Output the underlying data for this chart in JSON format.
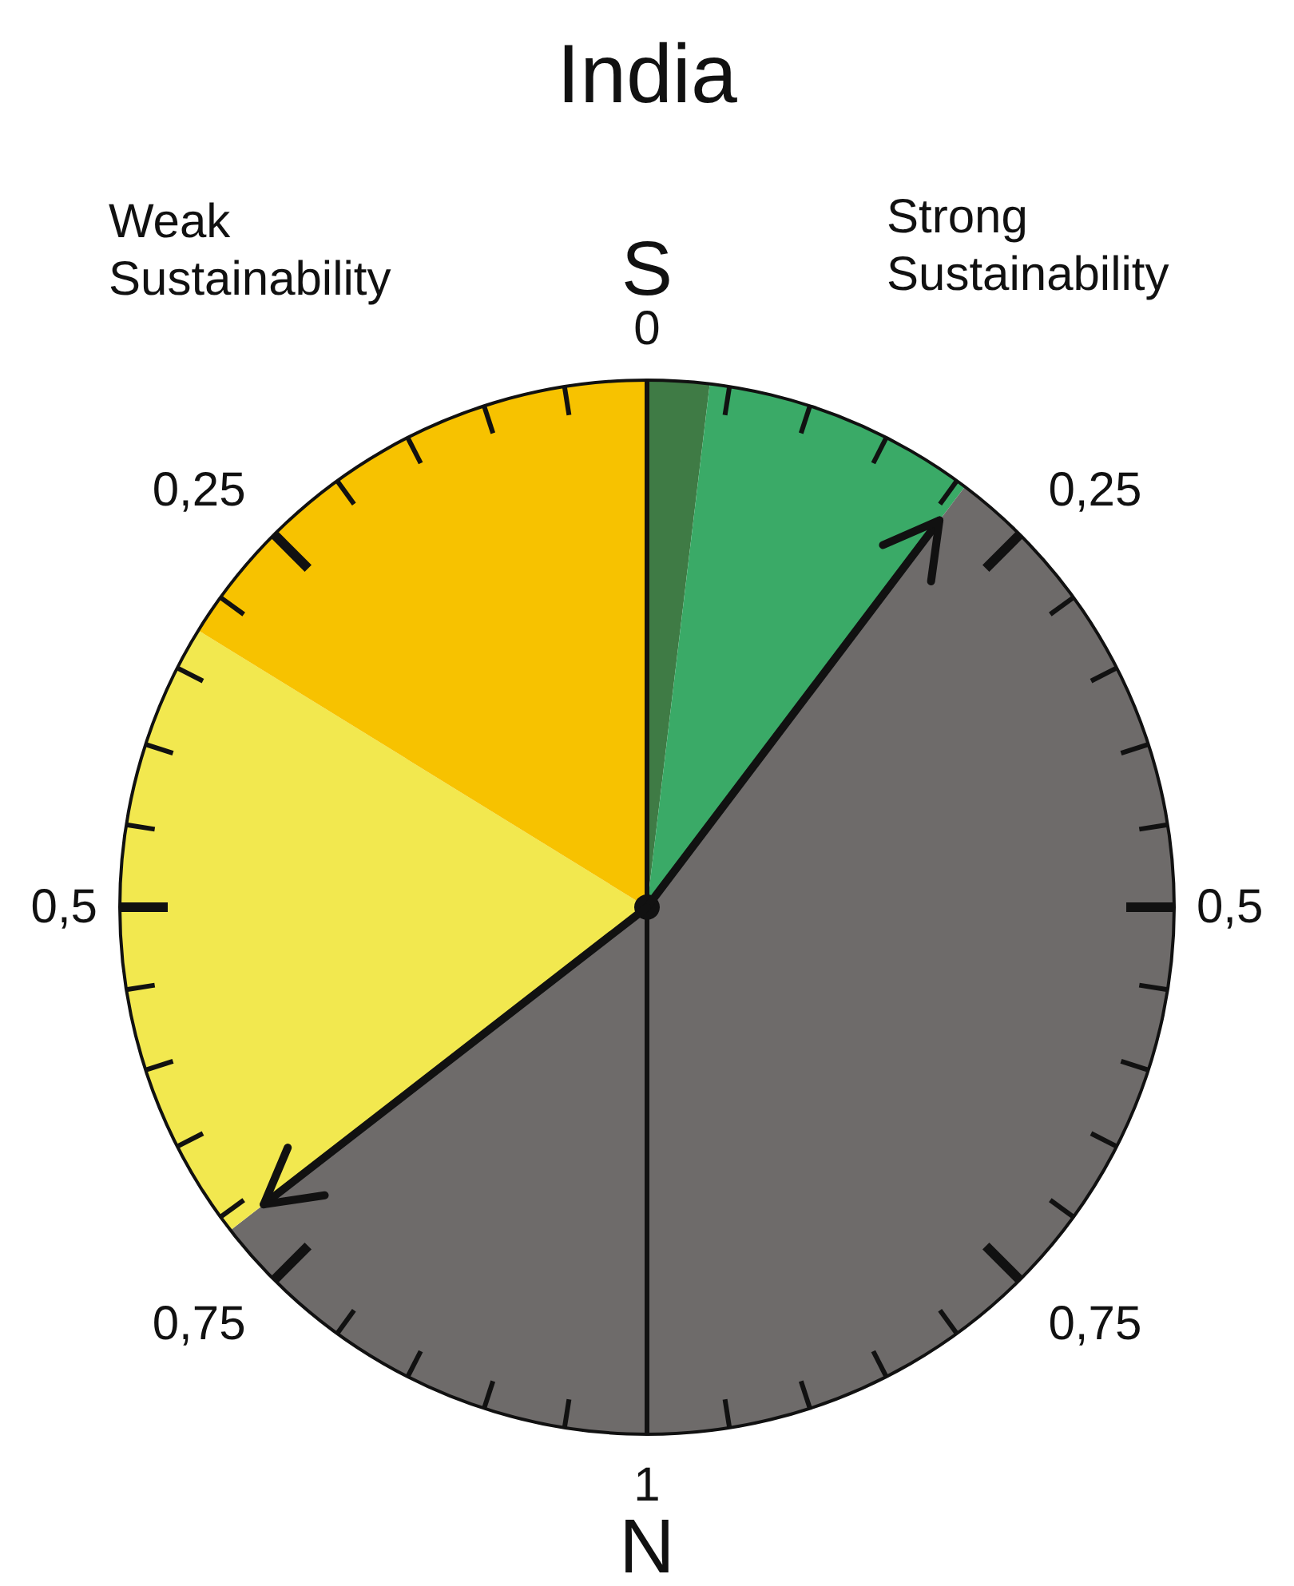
{
  "chart_data": {
    "type": "pie",
    "title": "India",
    "categories": [
      null,
      null,
      null,
      null,
      null,
      null
    ],
    "values": [
      1.9,
      8.4,
      39.7,
      14.5,
      19.3,
      16.2
    ],
    "colors": [
      "#3f7b45",
      "#3aaa67",
      "#6e6b6a",
      "#6e6b6a",
      "#f2e84f",
      "#f7c200"
    ],
    "annotations": [
      "S",
      "N",
      "Weak\nSustainability",
      "Strong\nSustainability",
      "0",
      "0,25",
      "0,5",
      "0,75",
      "1",
      "0,25",
      "0,5",
      "0,75"
    ]
  }
}
